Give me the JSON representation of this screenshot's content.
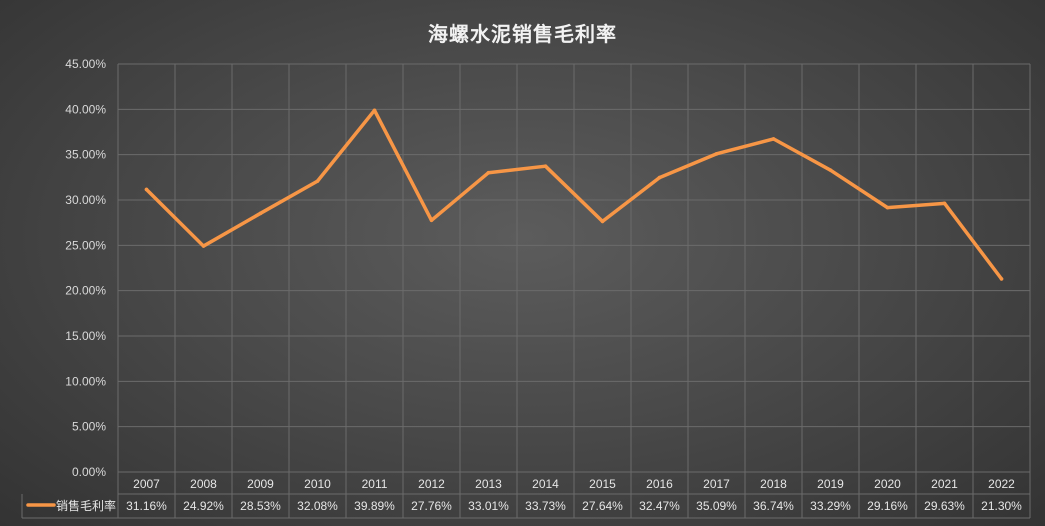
{
  "chart_data": {
    "type": "line",
    "title": "海螺水泥销售毛利率",
    "categories": [
      "2007",
      "2008",
      "2009",
      "2010",
      "2011",
      "2012",
      "2013",
      "2014",
      "2015",
      "2016",
      "2017",
      "2018",
      "2019",
      "2020",
      "2021",
      "2022"
    ],
    "series": [
      {
        "name": "销售毛利率",
        "values": [
          31.16,
          24.92,
          28.53,
          32.08,
          39.89,
          27.76,
          33.01,
          33.73,
          27.64,
          32.47,
          35.09,
          36.74,
          33.29,
          29.16,
          29.63,
          21.3
        ],
        "value_labels": [
          "31.16%",
          "24.92%",
          "28.53%",
          "32.08%",
          "39.89%",
          "27.76%",
          "33.01%",
          "33.73%",
          "27.64%",
          "32.47%",
          "35.09%",
          "36.74%",
          "33.29%",
          "29.16%",
          "29.63%",
          "21.30%"
        ],
        "color": "#f79646"
      }
    ],
    "y_ticks": [
      "0.00%",
      "5.00%",
      "10.00%",
      "15.00%",
      "20.00%",
      "25.00%",
      "30.00%",
      "35.00%",
      "40.00%",
      "45.00%"
    ],
    "ylim": [
      0,
      45
    ],
    "grid": true,
    "legend": "data-table-left",
    "colors": {
      "background": "#4a4a4a",
      "grid": "#6b6b6b",
      "text": "#d9d9d9",
      "line": "#f79646"
    }
  }
}
